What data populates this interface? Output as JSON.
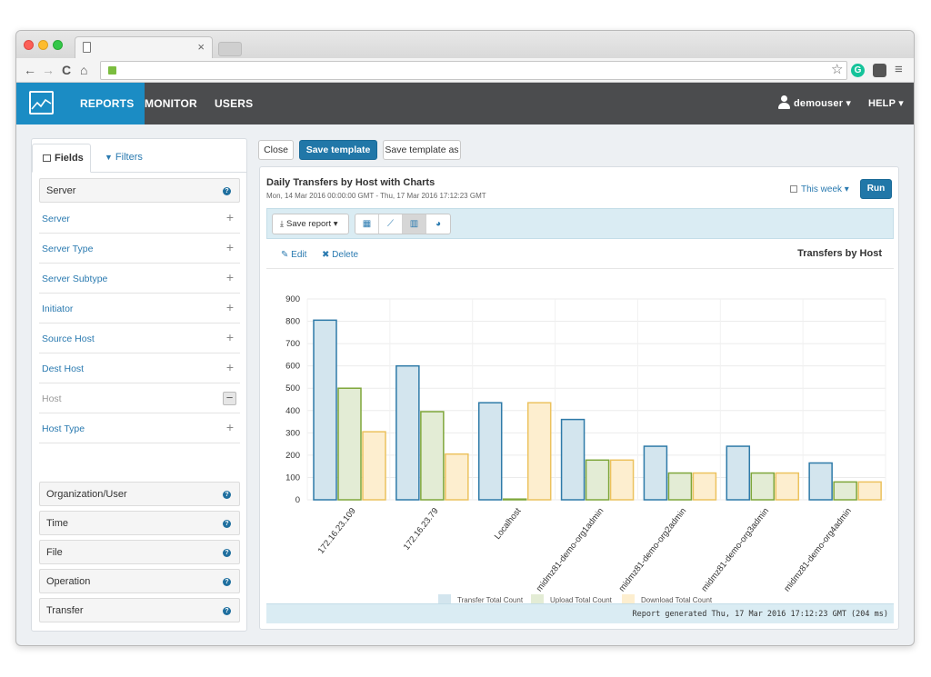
{
  "browser": {
    "tab_close": "×",
    "back": "←",
    "forward": "→",
    "reload": "C",
    "home": "⌂",
    "star": "☆",
    "grammarly": "G",
    "menu": "≡"
  },
  "appnav": {
    "items": [
      "REPORTS",
      "MONITOR",
      "USERS"
    ],
    "active_index": 0,
    "user": "demouser ▾",
    "help": "HELP ▾"
  },
  "leftpanel": {
    "tabs": {
      "fields": "Fields",
      "filters": "Filters"
    },
    "server_group": "Server",
    "fields": [
      {
        "label": "Server",
        "state": "add"
      },
      {
        "label": "Server Type",
        "state": "add"
      },
      {
        "label": "Server Subtype",
        "state": "add"
      },
      {
        "label": "Initiator",
        "state": "add"
      },
      {
        "label": "Source Host",
        "state": "add"
      },
      {
        "label": "Dest Host",
        "state": "add"
      },
      {
        "label": "Host",
        "state": "remove"
      },
      {
        "label": "Host Type",
        "state": "add"
      }
    ],
    "plus": "+",
    "minus": "−",
    "help_glyph": "?",
    "groups": [
      "Organization/User",
      "Time",
      "File",
      "Operation",
      "Transfer"
    ]
  },
  "actions": {
    "close": "Close",
    "save_template": "Save template",
    "save_template_as": "Save template as"
  },
  "report": {
    "title": "Daily Transfers by Host with Charts",
    "subtitle": "Mon, 14 Mar 2016 00:00:00 GMT - Thu, 17 Mar 2016 17:12:23 GMT",
    "period": "This week ▾",
    "run": "Run",
    "save_report": "Save report ▾",
    "edit": "Edit",
    "delete": "Delete",
    "edit_glyph": "✎",
    "delete_glyph": "✖",
    "footer": "Report generated Thu, 17 Mar 2016 17:12:23 GMT (204 ms)"
  },
  "colors": {
    "accent": "#1b8cc4",
    "transfer_fill": "#d3e5ee",
    "transfer_stroke": "#2e7aa8",
    "upload_fill": "#e3ecd5",
    "upload_stroke": "#7ea63a",
    "download_fill": "#fdeecf",
    "download_stroke": "#ecc25e"
  },
  "chart_data": {
    "type": "bar",
    "title": "Transfers by Host",
    "categories": [
      "172.16.23.109",
      "172.16.23.79",
      "Localhost",
      "midmz81-demo-org1admin",
      "midmz81-demo-org2admin",
      "midmz81-demo-org3admin",
      "midmz81-demo-org4admin"
    ],
    "series": [
      {
        "name": "Transfer Total Count",
        "values": [
          805,
          600,
          435,
          360,
          240,
          240,
          165
        ]
      },
      {
        "name": "Upload Total Count",
        "values": [
          500,
          395,
          0,
          178,
          120,
          120,
          80
        ]
      },
      {
        "name": "Download Total Count",
        "values": [
          305,
          205,
          435,
          178,
          120,
          120,
          80
        ]
      }
    ],
    "ylim": [
      0,
      900
    ],
    "yticks": [
      0,
      100,
      200,
      300,
      400,
      500,
      600,
      700,
      800,
      900
    ],
    "grid": true,
    "legend": "bottom"
  }
}
